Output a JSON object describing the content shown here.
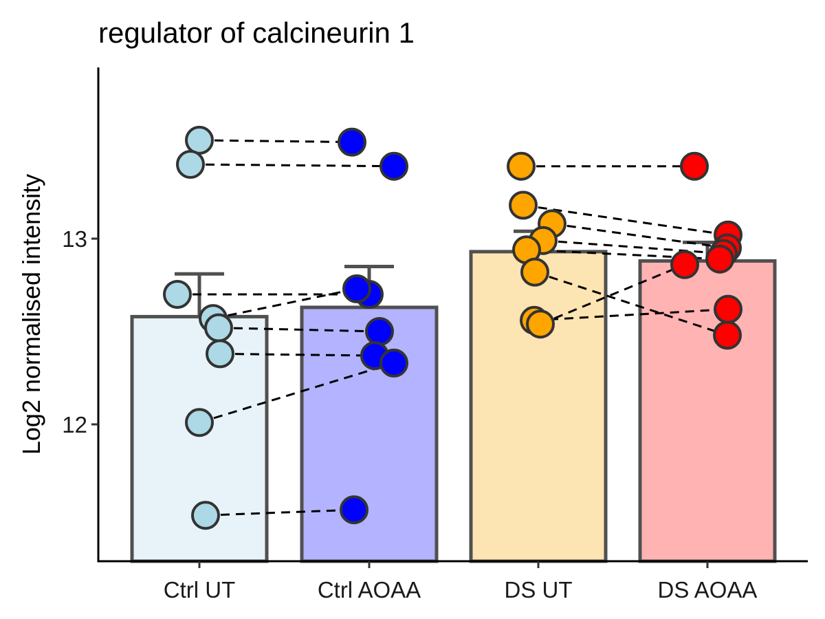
{
  "chart_data": {
    "type": "bar",
    "title": "regulator of calcineurin 1",
    "ylabel": "Log2 normalised intensity",
    "xlabel": "",
    "ylim": [
      11.27,
      13.92
    ],
    "yticks": [
      12,
      13
    ],
    "grid": false,
    "categories": [
      "Ctrl UT",
      "Ctrl AOAA",
      "DS UT",
      "DS AOAA"
    ],
    "bars": [
      {
        "category": "Ctrl UT",
        "mean": 12.58,
        "error_upper": 12.81,
        "fill": "#e8f3f9",
        "point_color": "#add8e6"
      },
      {
        "category": "Ctrl AOAA",
        "mean": 12.63,
        "error_upper": 12.85,
        "fill": "#b3b3ff",
        "point_color": "#0000ff"
      },
      {
        "category": "DS UT",
        "mean": 12.93,
        "error_upper": 13.04,
        "fill": "#fde4b3",
        "point_color": "#ffa500"
      },
      {
        "category": "DS AOAA",
        "mean": 12.88,
        "error_upper": 12.98,
        "fill": "#ffb3b3",
        "point_color": "#ff0000"
      }
    ],
    "pairs": [
      {
        "group": "Ctrl",
        "ut": 13.53,
        "aoaa": 13.52
      },
      {
        "group": "Ctrl",
        "ut": 13.4,
        "aoaa": 13.39
      },
      {
        "group": "Ctrl",
        "ut": 12.7,
        "aoaa": 12.7
      },
      {
        "group": "Ctrl",
        "ut": 12.57,
        "aoaa": 12.73
      },
      {
        "group": "Ctrl",
        "ut": 12.52,
        "aoaa": 12.5
      },
      {
        "group": "Ctrl",
        "ut": 12.38,
        "aoaa": 12.37
      },
      {
        "group": "Ctrl",
        "ut": 12.01,
        "aoaa": 12.33
      },
      {
        "group": "Ctrl",
        "ut": 11.51,
        "aoaa": 11.54
      },
      {
        "group": "DS",
        "ut": 13.39,
        "aoaa": 13.39
      },
      {
        "group": "DS",
        "ut": 13.18,
        "aoaa": 13.02
      },
      {
        "group": "DS",
        "ut": 13.08,
        "aoaa": 12.95
      },
      {
        "group": "DS",
        "ut": 12.99,
        "aoaa": 12.92
      },
      {
        "group": "DS",
        "ut": 12.94,
        "aoaa": 12.89
      },
      {
        "group": "DS",
        "ut": 12.82,
        "aoaa": 12.48
      },
      {
        "group": "DS",
        "ut": 12.56,
        "aoaa": 12.62
      },
      {
        "group": "DS",
        "ut": 12.54,
        "aoaa": 12.86
      }
    ]
  }
}
